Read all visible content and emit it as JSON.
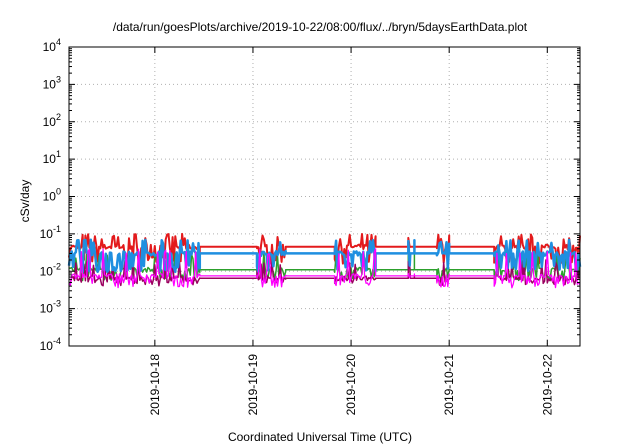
{
  "chart_data": {
    "type": "line",
    "title": "/data/run/goesPlots/archive/2019-10-22/08:00/flux/../bryn/5daysEarthData.plot",
    "xlabel": "Coordinated Universal Time (UTC)",
    "ylabel": "cSv/day",
    "y_scale": "log",
    "ylim": [
      0.0001,
      10000
    ],
    "y_ticks": [
      {
        "value": 0.0001,
        "base": "10",
        "exp": "-4"
      },
      {
        "value": 0.001,
        "base": "10",
        "exp": "-3"
      },
      {
        "value": 0.01,
        "base": "10",
        "exp": "-2"
      },
      {
        "value": 0.1,
        "base": "10",
        "exp": "-1"
      },
      {
        "value": 1,
        "base": "10",
        "exp": "0"
      },
      {
        "value": 10,
        "base": "10",
        "exp": "1"
      },
      {
        "value": 100,
        "base": "10",
        "exp": "2"
      },
      {
        "value": 1000,
        "base": "10",
        "exp": "3"
      },
      {
        "value": 10000,
        "base": "10",
        "exp": "4"
      }
    ],
    "xlim": [
      "2019-10-17 03:00",
      "2019-10-22 08:00"
    ],
    "x_ticks": [
      "2019-10-18",
      "2019-10-19",
      "2019-10-20",
      "2019-10-21",
      "2019-10-22"
    ],
    "grid": true,
    "legend": "none",
    "data_gaps": [
      [
        "2019-10-18 11:00",
        "2019-10-19 01:00"
      ],
      [
        "2019-10-19 08:00",
        "2019-10-19 20:00"
      ],
      [
        "2019-10-20 06:00",
        "2019-10-20 14:00"
      ],
      [
        "2019-10-20 14:30",
        "2019-10-20 15:30"
      ],
      [
        "2019-10-20 15:30",
        "2019-10-20 21:00"
      ],
      [
        "2019-10-21 00:00",
        "2019-10-21 11:00"
      ]
    ],
    "series": [
      {
        "color": "#e31a1c",
        "base": 0.045,
        "spike_low": 0.02,
        "spike_high": 0.1,
        "width": 2.0
      },
      {
        "color": "#2ca02c",
        "base": 0.011,
        "spike_low": 0.007,
        "spike_high": 0.03,
        "width": 1.5
      },
      {
        "color": "#9b0060",
        "base": 0.0065,
        "spike_low": 0.005,
        "spike_high": 0.02,
        "width": 1.5
      },
      {
        "color": "#1f8fe0",
        "base": 0.03,
        "spike_low": 0.012,
        "spike_high": 0.07,
        "width": 2.5
      },
      {
        "color": "#ff00ff",
        "base": 0.0075,
        "spike_low": 0.0045,
        "spike_high": 0.04,
        "width": 1.3
      }
    ]
  }
}
